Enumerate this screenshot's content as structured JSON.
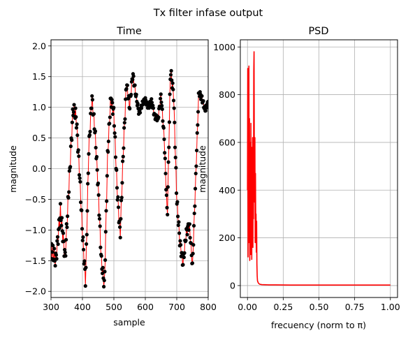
{
  "figure": {
    "suptitle": "Tx filter infase output"
  },
  "chart_data": [
    {
      "type": "line",
      "title": "Time",
      "xlabel": "sample",
      "ylabel": "magnitude",
      "xlim": [
        300,
        800
      ],
      "ylim": [
        -2.1,
        2.1
      ],
      "xticks": [
        300,
        400,
        500,
        600,
        700,
        800
      ],
      "yticks": [
        -2.0,
        -1.5,
        -1.0,
        -0.5,
        0.0,
        0.5,
        1.0,
        1.5,
        2.0
      ],
      "grid": true,
      "line_color": "#ff0000",
      "marker_color": "#000000",
      "marker": "dot",
      "sample_step": 1.5,
      "envelope_keys": [
        [
          300,
          -1.3
        ],
        [
          315,
          -1.5
        ],
        [
          330,
          -0.7
        ],
        [
          345,
          -1.45
        ],
        [
          360,
          0.0
        ],
        [
          370,
          0.97
        ],
        [
          380,
          0.85
        ],
        [
          390,
          0.0
        ],
        [
          400,
          -1.05
        ],
        [
          410,
          -1.85
        ],
        [
          420,
          0.3
        ],
        [
          430,
          1.17
        ],
        [
          440,
          0.6
        ],
        [
          450,
          -0.3
        ],
        [
          460,
          -1.5
        ],
        [
          470,
          -1.92
        ],
        [
          480,
          0.2
        ],
        [
          490,
          1.15
        ],
        [
          500,
          0.9
        ],
        [
          510,
          -0.3
        ],
        [
          520,
          -1.1
        ],
        [
          530,
          0.3
        ],
        [
          540,
          1.4
        ],
        [
          550,
          1.0
        ],
        [
          560,
          1.55
        ],
        [
          570,
          1.2
        ],
        [
          580,
          0.9
        ],
        [
          590,
          1.05
        ],
        [
          600,
          1.12
        ],
        [
          610,
          1.0
        ],
        [
          620,
          1.1
        ],
        [
          630,
          0.85
        ],
        [
          640,
          0.8
        ],
        [
          650,
          1.2
        ],
        [
          660,
          0.5
        ],
        [
          670,
          -0.8
        ],
        [
          680,
          1.62
        ],
        [
          690,
          1.2
        ],
        [
          700,
          -0.5
        ],
        [
          710,
          -1.2
        ],
        [
          720,
          -1.55
        ],
        [
          730,
          -1.05
        ],
        [
          740,
          -0.9
        ],
        [
          750,
          -1.6
        ],
        [
          760,
          -0.2
        ],
        [
          770,
          1.25
        ],
        [
          780,
          1.15
        ],
        [
          790,
          0.95
        ],
        [
          800,
          1.08
        ]
      ],
      "oscillation_keys": [
        [
          300,
          0.14
        ],
        [
          360,
          0.12
        ],
        [
          420,
          0.1
        ],
        [
          540,
          0.1
        ],
        [
          580,
          0.04
        ],
        [
          650,
          0.05
        ],
        [
          700,
          0.1
        ],
        [
          760,
          0.06
        ],
        [
          800,
          0.04
        ]
      ]
    },
    {
      "type": "line",
      "title": "PSD",
      "xlabel": "frecuency (norm to π)",
      "ylabel": "magnitude",
      "xlim": [
        -0.05,
        1.05
      ],
      "ylim": [
        -50,
        1030
      ],
      "xticks": [
        0.0,
        0.25,
        0.5,
        0.75,
        1.0
      ],
      "yticks": [
        0,
        200,
        400,
        600,
        800,
        1000
      ],
      "grid": true,
      "line_color": "#ff0000",
      "x": [
        0.0,
        0.002,
        0.004,
        0.006,
        0.008,
        0.01,
        0.012,
        0.014,
        0.016,
        0.018,
        0.02,
        0.022,
        0.024,
        0.026,
        0.028,
        0.03,
        0.032,
        0.034,
        0.036,
        0.038,
        0.04,
        0.042,
        0.044,
        0.046,
        0.048,
        0.05,
        0.052,
        0.054,
        0.056,
        0.058,
        0.06,
        0.062,
        0.064,
        0.066,
        0.068,
        0.07,
        0.075,
        0.08,
        0.085,
        0.09,
        0.1,
        0.15,
        0.2,
        0.3,
        0.5,
        0.7,
        1.0
      ],
      "y": [
        400,
        910,
        120,
        850,
        330,
        920,
        180,
        700,
        105,
        430,
        600,
        130,
        680,
        200,
        580,
        110,
        500,
        250,
        620,
        160,
        480,
        280,
        900,
        980,
        520,
        350,
        620,
        180,
        470,
        240,
        300,
        140,
        270,
        90,
        40,
        20,
        12,
        8,
        6,
        5,
        4,
        3,
        3,
        2,
        2,
        2,
        2
      ]
    }
  ]
}
